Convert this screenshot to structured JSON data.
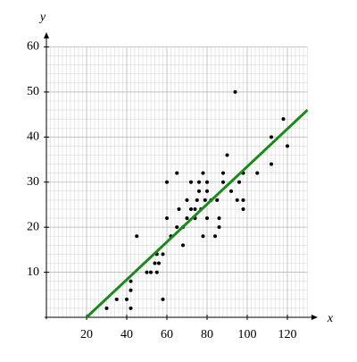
{
  "chart_data": {
    "type": "scatter",
    "x_label": "x",
    "y_label": "y",
    "xlim": [
      0,
      130
    ],
    "ylim": [
      0,
      60
    ],
    "xticks": [
      20,
      40,
      60,
      80,
      100,
      120
    ],
    "yticks": [
      10,
      20,
      30,
      40,
      50,
      60
    ],
    "grid": true,
    "series": [
      {
        "type": "scatter",
        "color": "#000000",
        "x": [
          30,
          35,
          40,
          42,
          42,
          42,
          45,
          50,
          52,
          54,
          55,
          55,
          56,
          58,
          58,
          60,
          60,
          62,
          65,
          65,
          66,
          68,
          68,
          70,
          70,
          72,
          72,
          74,
          74,
          75,
          76,
          76,
          77,
          78,
          78,
          79,
          80,
          80,
          80,
          82,
          84,
          85,
          86,
          86,
          88,
          88,
          90,
          92,
          94,
          95,
          96,
          98,
          98,
          98,
          105,
          112,
          112,
          118,
          120
        ],
        "values": [
          2,
          4,
          4,
          2,
          6,
          8,
          18,
          10,
          10,
          12,
          10,
          14,
          12,
          4,
          14,
          22,
          30,
          18,
          20,
          32,
          24,
          16,
          20,
          22,
          26,
          24,
          30,
          22,
          24,
          26,
          28,
          30,
          24,
          18,
          32,
          26,
          22,
          28,
          30,
          26,
          18,
          26,
          22,
          20,
          30,
          32,
          36,
          28,
          50,
          26,
          30,
          24,
          26,
          32,
          32,
          40,
          34,
          44,
          38
        ]
      },
      {
        "type": "line",
        "color": "#1a8a1a",
        "x": [
          20,
          130
        ],
        "values": [
          0,
          46
        ]
      }
    ]
  }
}
